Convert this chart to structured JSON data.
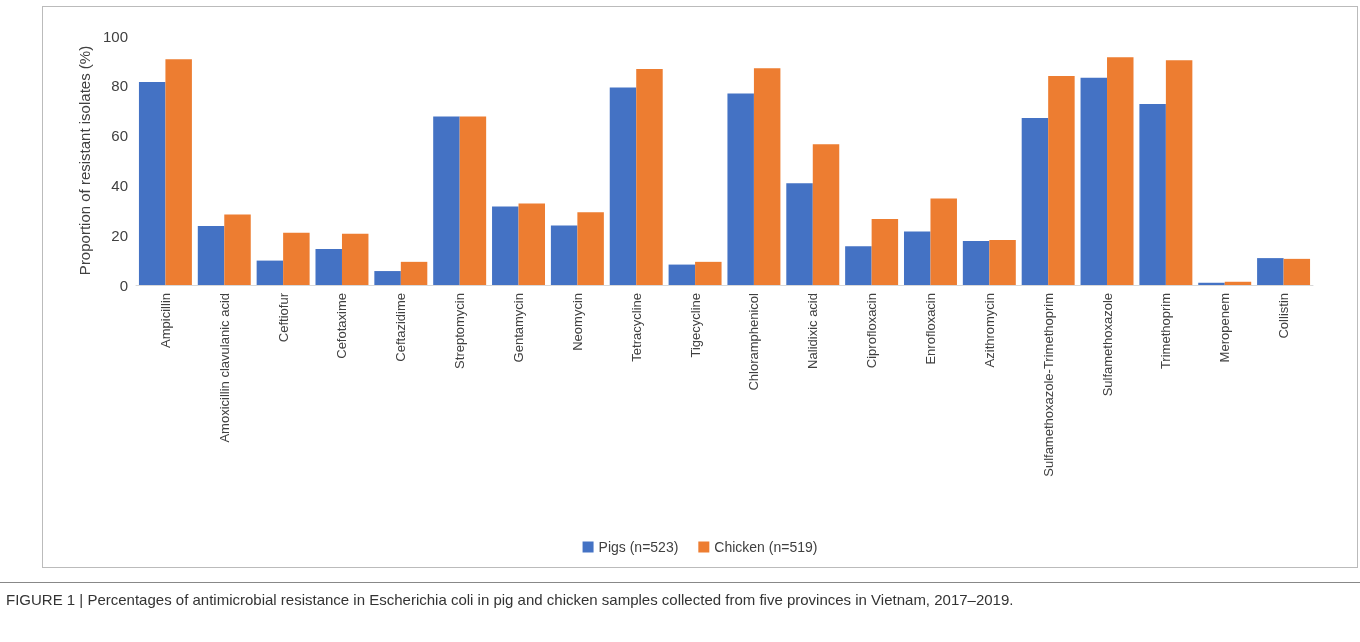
{
  "chart_data": {
    "type": "bar",
    "ylabel": "Proportion of resistant isolates (%)",
    "categories": [
      "Ampicillin",
      "Amoxicillin clavulanic acid",
      "Ceftiofur",
      "Cefotaxime",
      "Ceftazidime",
      "Streptomycin",
      "Gentamycin",
      "Neomycin",
      "Tetracycline",
      "Tigecycline",
      "Chloramphenicol",
      "Nalidixic acid",
      "Ciprofloxacin",
      "Enrofloxacin",
      "Azithromycin",
      "Sulfamethoxazole-Trimethoprim",
      "Sulfamethoxazole",
      "Trimethoprim",
      "Meropenem",
      "Collistin"
    ],
    "series": [
      {
        "name": "Pigs (n=523)",
        "color": "#4472c4",
        "values": [
          81.5,
          23.7,
          9.8,
          14.5,
          5.6,
          67.7,
          31.5,
          23.9,
          79.3,
          8.2,
          76.9,
          40.9,
          15.6,
          21.5,
          17.7,
          67.1,
          83.2,
          72.7,
          0.9,
          10.8
        ]
      },
      {
        "name": "Chicken (n=519)",
        "color": "#ed7d31",
        "values": [
          90.7,
          28.3,
          21,
          20.6,
          9.3,
          67.7,
          32.7,
          29.2,
          86.7,
          9.3,
          87,
          56.5,
          26.5,
          34.7,
          18.1,
          83.9,
          91.5,
          90.3,
          1.3,
          10.5
        ]
      }
    ],
    "ylim": [
      0,
      100
    ],
    "yticks": [
      0,
      20,
      40,
      60,
      80,
      100
    ],
    "grid": false,
    "legend": "bottom",
    "annotations": [
      "FIGURE 1 | Percentages of antimicrobial resistance in Escherichia coli in pig and chicken samples collected from five provinces in Vietnam, 2017–2019."
    ]
  }
}
